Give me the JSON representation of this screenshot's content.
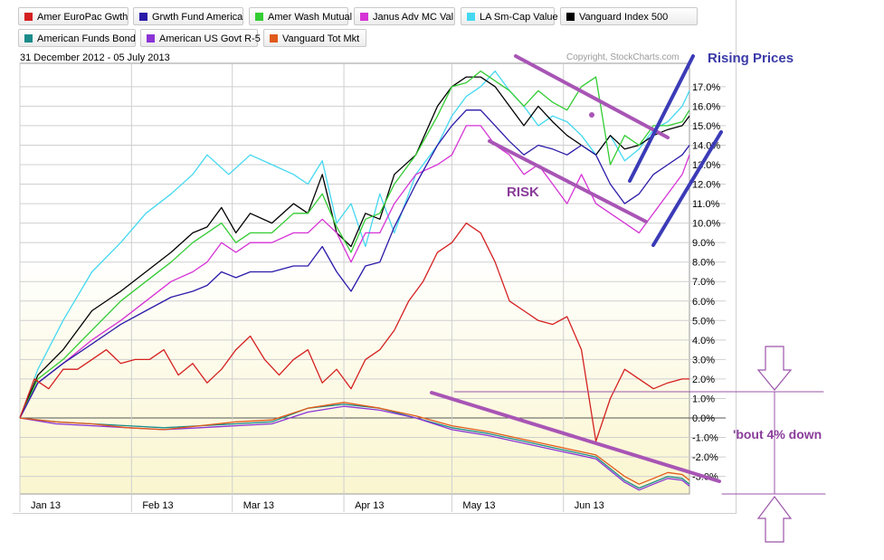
{
  "legend": [
    {
      "label": "Amer EuroPac Gwth",
      "color": "#d42020"
    },
    {
      "label": "Grwth Fund America",
      "color": "#2a1aa8"
    },
    {
      "label": "Amer Wash Mutual",
      "color": "#33cc33"
    },
    {
      "label": "Janus Adv MC Val",
      "color": "#d633d6"
    },
    {
      "label": "LA Sm-Cap Value",
      "color": "#44d8f0"
    },
    {
      "label": "Vanguard Index 500",
      "color": "#000000"
    },
    {
      "label": "American Funds Bond",
      "color": "#1a8a8a"
    },
    {
      "label": "American US Govt R-5",
      "color": "#8a33d6"
    },
    {
      "label": "Vanguard Tot Mkt",
      "color": "#e05a1a"
    }
  ],
  "header": {
    "date_range": "31 December 2012 - 05 July 2013",
    "copyright": "Copyright, StockCharts.com"
  },
  "annotations": {
    "rising": "Rising Prices",
    "risk": "RISK",
    "down": "'bout 4% down"
  },
  "annotation_colors": {
    "purple_lines": "#a855b5",
    "blue_lines": "#3b3bb8",
    "arrows": "#9b55a8"
  },
  "chart_data": {
    "type": "line",
    "ylim": [
      -3.9,
      18.2
    ],
    "y_ticks": [
      "-3.0%",
      "-2.0%",
      "-1.0%",
      "0.0%",
      "1.0%",
      "2.0%",
      "3.0%",
      "4.0%",
      "5.0%",
      "6.0%",
      "7.0%",
      "8.0%",
      "9.0%",
      "10.0%",
      "11.0%",
      "12.0%",
      "13.0%",
      "14.0%",
      "15.0%",
      "16.0%",
      "17.0%"
    ],
    "y_tick_values": [
      -3,
      -2,
      -1,
      0,
      1,
      2,
      3,
      4,
      5,
      6,
      7,
      8,
      9,
      10,
      11,
      12,
      13,
      14,
      15,
      16,
      17
    ],
    "x_ticks": [
      "Jan 13",
      "Feb 13",
      "Mar 13",
      "Apr 13",
      "May 13",
      "Jun 13"
    ],
    "x_tick_days": [
      0,
      31,
      59,
      90,
      120,
      151
    ],
    "xlim": [
      0,
      186
    ],
    "grid": true,
    "series": [
      {
        "name": "LA Sm-Cap Value",
        "color": "#44d8f0",
        "x": [
          0,
          5,
          12,
          20,
          28,
          35,
          42,
          48,
          52,
          58,
          64,
          70,
          76,
          80,
          84,
          88,
          92,
          96,
          100,
          104,
          110,
          116,
          120,
          124,
          128,
          132,
          136,
          140,
          144,
          148,
          152,
          156,
          160,
          164,
          168,
          172,
          176,
          180,
          184,
          186
        ],
        "y": [
          0,
          2.5,
          5,
          7.5,
          9,
          10.5,
          11.5,
          12.5,
          13.5,
          12.5,
          13.5,
          13,
          12.5,
          12,
          13.2,
          10,
          11,
          8.8,
          11.5,
          9.5,
          12.5,
          14,
          15.5,
          16.5,
          17,
          17.8,
          16.8,
          16,
          15,
          15.5,
          15.2,
          14.5,
          13.5,
          14.5,
          13.2,
          13.8,
          14.8,
          15.2,
          16,
          16.8
        ]
      },
      {
        "name": "Vanguard Index 500",
        "color": "#000000",
        "x": [
          0,
          5,
          12,
          20,
          28,
          35,
          42,
          48,
          52,
          56,
          60,
          64,
          70,
          76,
          80,
          84,
          88,
          92,
          96,
          100,
          104,
          110,
          116,
          120,
          124,
          128,
          132,
          136,
          140,
          144,
          148,
          152,
          156,
          160,
          164,
          168,
          172,
          176,
          180,
          184,
          186
        ],
        "y": [
          0,
          2.2,
          3.5,
          5.5,
          6.5,
          7.5,
          8.5,
          9.5,
          9.8,
          10.8,
          9.5,
          10.5,
          10,
          11,
          10.5,
          12.5,
          9.5,
          8.8,
          10.5,
          10.2,
          12.5,
          13.5,
          16,
          17,
          17.5,
          17.5,
          17,
          16,
          15,
          16,
          15.2,
          14.5,
          14,
          13.5,
          14.5,
          13.8,
          14,
          14.5,
          14.8,
          15,
          15.5
        ]
      },
      {
        "name": "Amer Wash Mutual",
        "color": "#33cc33",
        "x": [
          0,
          5,
          12,
          20,
          28,
          35,
          42,
          48,
          52,
          56,
          60,
          64,
          70,
          76,
          80,
          84,
          88,
          92,
          96,
          100,
          104,
          110,
          116,
          120,
          124,
          128,
          132,
          136,
          140,
          144,
          148,
          152,
          156,
          160,
          164,
          168,
          172,
          176,
          180,
          184,
          186
        ],
        "y": [
          0,
          2,
          3,
          4.5,
          6,
          7,
          8,
          9,
          9.5,
          10,
          9,
          9.5,
          9.5,
          10.5,
          10.5,
          11.5,
          9.8,
          8.5,
          10.2,
          10.5,
          12,
          13.5,
          15.5,
          17,
          17.2,
          17.8,
          17.3,
          16.8,
          16,
          16.8,
          16.2,
          15.8,
          17,
          17.5,
          13,
          14.5,
          14,
          15,
          15,
          15.2,
          15.8
        ]
      },
      {
        "name": "Janus Adv MC Val",
        "color": "#d633d6",
        "x": [
          0,
          5,
          12,
          20,
          28,
          35,
          42,
          48,
          52,
          56,
          60,
          64,
          70,
          76,
          80,
          84,
          88,
          92,
          96,
          100,
          104,
          110,
          116,
          120,
          124,
          128,
          132,
          136,
          140,
          144,
          148,
          152,
          156,
          160,
          164,
          168,
          172,
          176,
          180,
          184,
          186
        ],
        "y": [
          0,
          1.8,
          2.8,
          4,
          5,
          6,
          7,
          7.5,
          8,
          9,
          8.5,
          9,
          9,
          9.5,
          9.5,
          10.2,
          9.5,
          8,
          9.5,
          9.5,
          11,
          12.5,
          13,
          13.5,
          15,
          15,
          14,
          13.5,
          12.5,
          13,
          12,
          11,
          12.5,
          11,
          10.5,
          10,
          9.5,
          10.5,
          11.5,
          12.5,
          13.5
        ]
      },
      {
        "name": "Grwth Fund America",
        "color": "#2a1aa8",
        "x": [
          0,
          5,
          12,
          20,
          28,
          35,
          42,
          48,
          52,
          56,
          60,
          64,
          70,
          76,
          80,
          84,
          88,
          92,
          96,
          100,
          104,
          110,
          116,
          120,
          124,
          128,
          132,
          136,
          140,
          144,
          148,
          152,
          156,
          160,
          164,
          168,
          172,
          176,
          180,
          184,
          186
        ],
        "y": [
          0,
          1.8,
          2.8,
          3.8,
          4.8,
          5.5,
          6.2,
          6.5,
          6.8,
          7.5,
          7.2,
          7.5,
          7.5,
          7.8,
          7.8,
          8.8,
          7.5,
          6.5,
          7.8,
          8,
          9.8,
          12,
          14,
          15,
          15.8,
          15.8,
          15,
          14.2,
          13.5,
          14,
          13.8,
          13.5,
          14,
          13.5,
          12,
          11,
          11.5,
          12.5,
          13,
          13.5,
          14
        ]
      },
      {
        "name": "Amer EuroPac Gwth",
        "color": "#d42020",
        "x": [
          0,
          4,
          8,
          12,
          16,
          20,
          24,
          28,
          32,
          36,
          40,
          44,
          48,
          52,
          56,
          60,
          64,
          68,
          72,
          76,
          80,
          84,
          88,
          92,
          96,
          100,
          104,
          108,
          112,
          116,
          120,
          124,
          128,
          132,
          136,
          140,
          144,
          148,
          152,
          156,
          160,
          164,
          168,
          172,
          176,
          180,
          184,
          186
        ],
        "y": [
          0,
          2,
          1.5,
          2.5,
          2.5,
          3,
          3.5,
          2.8,
          3,
          3,
          3.5,
          2.2,
          2.8,
          1.8,
          2.5,
          3.5,
          4.2,
          3,
          2.2,
          3,
          3.5,
          1.8,
          2.5,
          1.5,
          3,
          3.5,
          4.5,
          6,
          7,
          8.5,
          9,
          10,
          9.5,
          8,
          6,
          5.5,
          5,
          4.8,
          5.2,
          3.5,
          -1.2,
          1,
          2.5,
          2,
          1.5,
          1.8,
          2,
          2
        ]
      },
      {
        "name": "American Funds Bond",
        "color": "#1a8a8a",
        "x": [
          0,
          10,
          20,
          30,
          40,
          50,
          60,
          70,
          80,
          90,
          100,
          110,
          120,
          130,
          140,
          150,
          160,
          168,
          172,
          176,
          180,
          184,
          186
        ],
        "y": [
          0,
          -0.2,
          -0.3,
          -0.4,
          -0.5,
          -0.4,
          -0.3,
          -0.2,
          0.5,
          0.7,
          0.5,
          0,
          -0.5,
          -0.8,
          -1.2,
          -1.6,
          -2,
          -3.2,
          -3.6,
          -3.3,
          -3,
          -3.1,
          -3.4
        ]
      },
      {
        "name": "American US Govt R-5",
        "color": "#8a33d6",
        "x": [
          0,
          10,
          20,
          30,
          40,
          50,
          60,
          70,
          80,
          90,
          100,
          110,
          120,
          130,
          140,
          150,
          160,
          168,
          172,
          176,
          180,
          184,
          186
        ],
        "y": [
          0,
          -0.3,
          -0.4,
          -0.5,
          -0.6,
          -0.5,
          -0.4,
          -0.3,
          0.3,
          0.6,
          0.4,
          0,
          -0.6,
          -0.9,
          -1.3,
          -1.7,
          -2.1,
          -3.3,
          -3.7,
          -3.4,
          -3.1,
          -3.2,
          -3.5
        ]
      },
      {
        "name": "Vanguard Tot Mkt",
        "color": "#e05a1a",
        "x": [
          0,
          10,
          20,
          30,
          40,
          50,
          60,
          70,
          80,
          90,
          100,
          110,
          120,
          130,
          140,
          150,
          160,
          168,
          172,
          176,
          180,
          184,
          186
        ],
        "y": [
          0,
          -0.2,
          -0.3,
          -0.5,
          -0.6,
          -0.4,
          -0.2,
          -0.1,
          0.5,
          0.8,
          0.5,
          0.1,
          -0.4,
          -0.7,
          -1.1,
          -1.5,
          -1.9,
          -3,
          -3.4,
          -3.1,
          -2.8,
          -2.9,
          -3.2
        ]
      }
    ]
  }
}
